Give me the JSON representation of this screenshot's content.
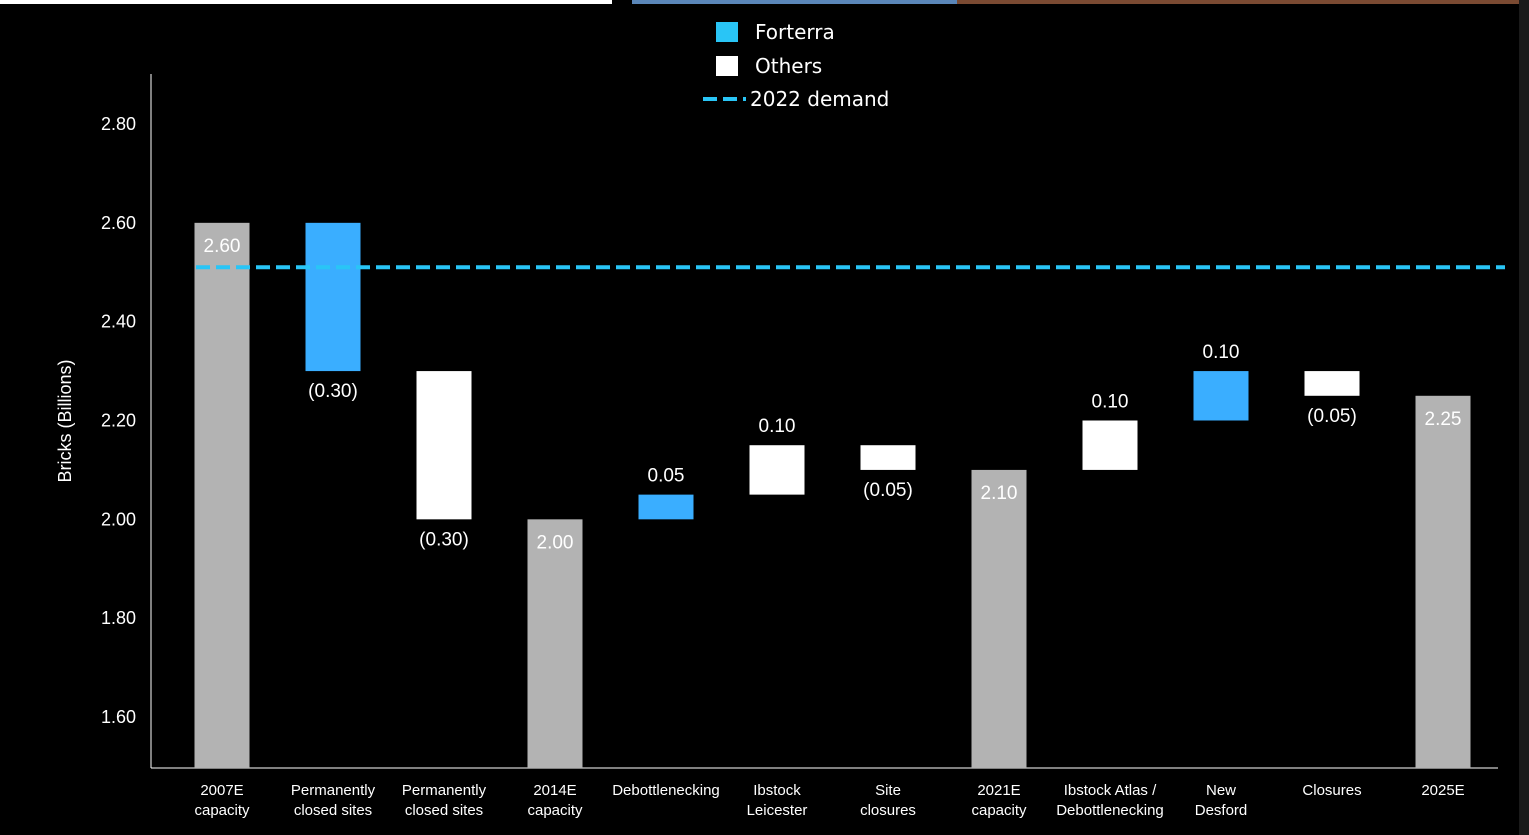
{
  "chart_data": {
    "type": "bar",
    "subtype": "waterfall",
    "ylabel": "Bricks (Billions)",
    "ylim": [
      1.5,
      2.9
    ],
    "yticks": [
      "1.60",
      "1.80",
      "2.00",
      "2.20",
      "2.40",
      "2.60",
      "2.80"
    ],
    "reference_line": {
      "name": "2022 demand",
      "value": 2.51,
      "style": "dashed",
      "color": "#29C5F6"
    },
    "legend": [
      {
        "name": "Forterra",
        "color": "#29C5F6",
        "kind": "swatch"
      },
      {
        "name": "Others",
        "color": "#FFFFFF",
        "kind": "swatch"
      },
      {
        "name": "2022 demand",
        "color": "#29C5F6",
        "kind": "dash"
      }
    ],
    "legend_position": "top-center",
    "bars": [
      {
        "category": [
          "2007E",
          "capacity"
        ],
        "kind": "total",
        "bottom": 1.5,
        "top": 2.6,
        "label": "2.60",
        "color": "#B3B3B3",
        "label_pos": "inside-top"
      },
      {
        "category": [
          "Permanently",
          "closed sites"
        ],
        "kind": "Forterra",
        "bottom": 2.3,
        "top": 2.6,
        "label": "(0.30)",
        "color": "#3AAEFF",
        "label_pos": "below"
      },
      {
        "category": [
          "Permanently",
          "closed sites"
        ],
        "kind": "Others",
        "bottom": 2.0,
        "top": 2.3,
        "label": "(0.30)",
        "color": "#FFFFFF",
        "label_pos": "below"
      },
      {
        "category": [
          "2014E",
          "capacity"
        ],
        "kind": "total",
        "bottom": 1.5,
        "top": 2.0,
        "label": "2.00",
        "color": "#B3B3B3",
        "label_pos": "inside-top"
      },
      {
        "category": [
          "Debottlenecking"
        ],
        "kind": "Forterra",
        "bottom": 2.0,
        "top": 2.05,
        "label": "0.05",
        "color": "#3AAEFF",
        "label_pos": "above"
      },
      {
        "category": [
          "Ibstock",
          "Leicester"
        ],
        "kind": "Others",
        "bottom": 2.05,
        "top": 2.15,
        "label": "0.10",
        "color": "#FFFFFF",
        "label_pos": "above"
      },
      {
        "category": [
          "Site",
          "closures"
        ],
        "kind": "Others",
        "bottom": 2.1,
        "top": 2.15,
        "label": "(0.05)",
        "color": "#FFFFFF",
        "label_pos": "below"
      },
      {
        "category": [
          "2021E",
          "capacity"
        ],
        "kind": "total",
        "bottom": 1.5,
        "top": 2.1,
        "label": "2.10",
        "color": "#B3B3B3",
        "label_pos": "inside-top"
      },
      {
        "category": [
          "Ibstock Atlas /",
          "Debottlenecking"
        ],
        "kind": "Others",
        "bottom": 2.1,
        "top": 2.2,
        "label": "0.10",
        "color": "#FFFFFF",
        "label_pos": "above"
      },
      {
        "category": [
          "New",
          "Desford"
        ],
        "kind": "Forterra",
        "bottom": 2.2,
        "top": 2.3,
        "label": "0.10",
        "color": "#3AAEFF",
        "label_pos": "above"
      },
      {
        "category": [
          "Closures"
        ],
        "kind": "Others",
        "bottom": 2.25,
        "top": 2.3,
        "label": "(0.05)",
        "color": "#FFFFFF",
        "label_pos": "below"
      },
      {
        "category": [
          "2025E"
        ],
        "kind": "total",
        "bottom": 1.5,
        "top": 2.25,
        "label": "2.25",
        "color": "#B3B3B3",
        "label_pos": "inside-top"
      }
    ]
  }
}
